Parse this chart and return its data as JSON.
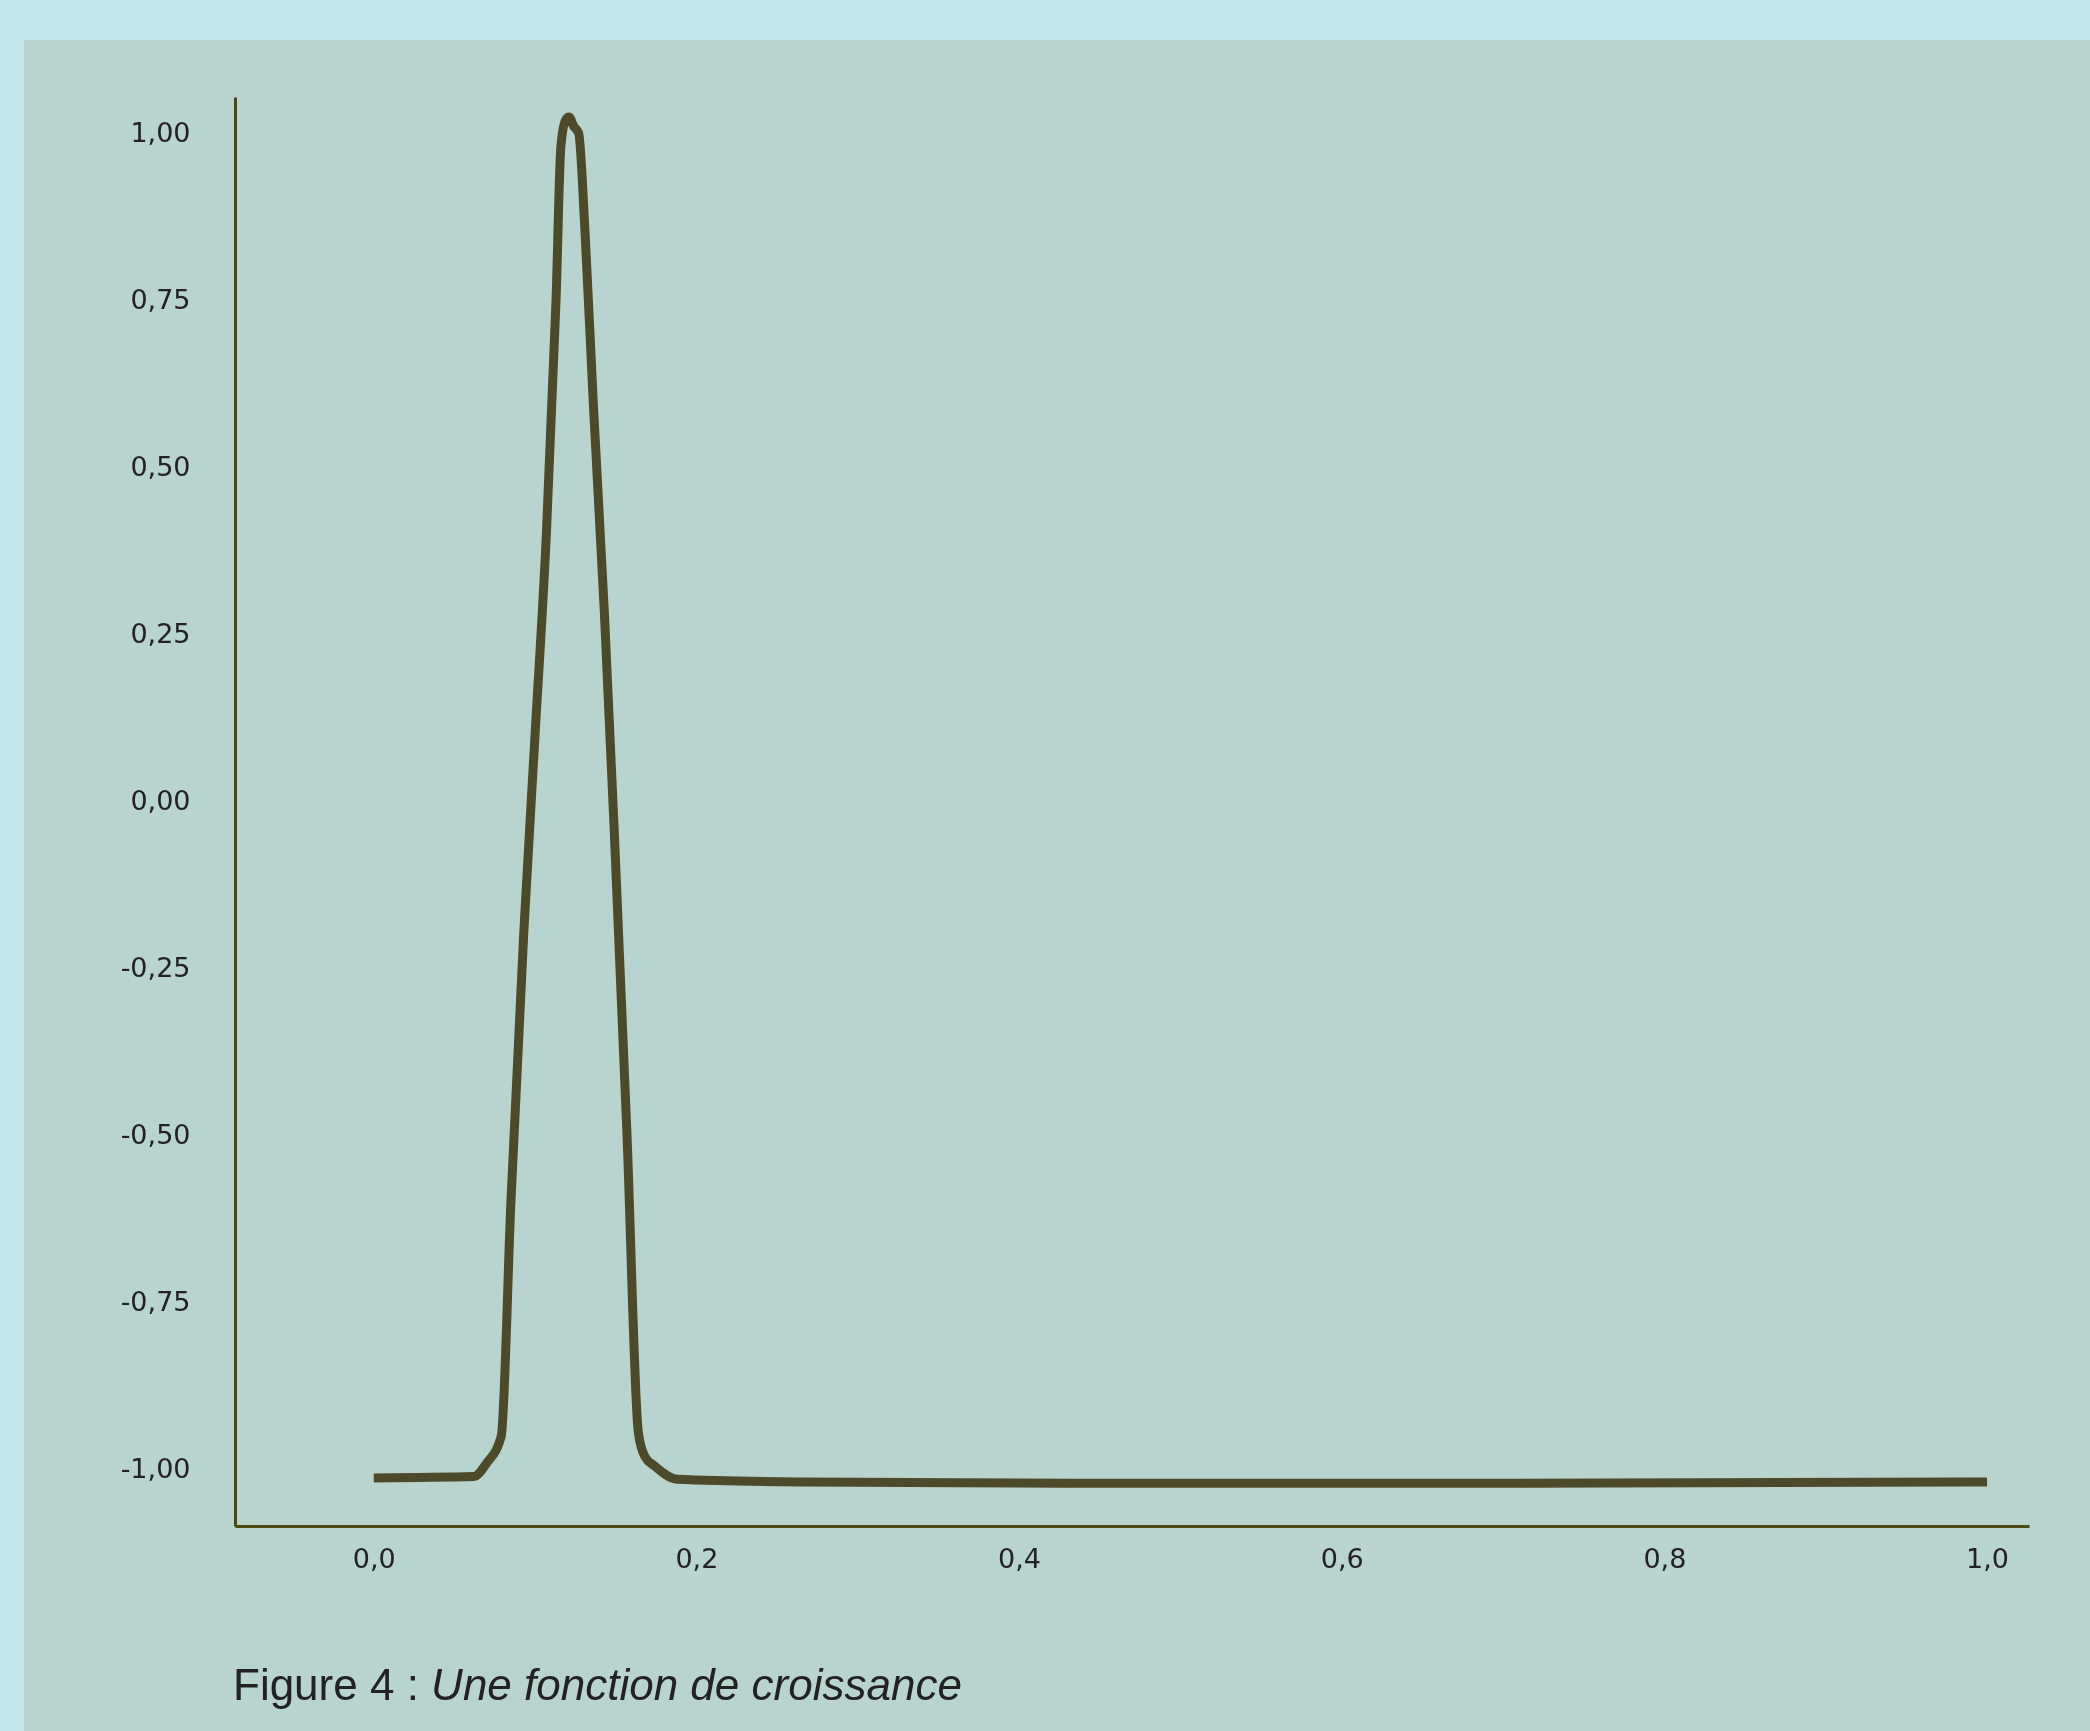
{
  "chart_data": {
    "type": "line",
    "x": [
      0.0,
      0.062,
      0.07,
      0.079,
      0.085,
      0.093,
      0.1,
      0.107,
      0.113,
      0.116,
      0.119,
      0.121,
      0.124,
      0.127,
      0.131,
      0.136,
      0.143,
      0.149,
      0.157,
      0.164,
      0.168,
      0.174,
      0.188,
      0.264,
      0.43,
      0.7,
      1.0
    ],
    "series": [
      {
        "color": "#4d4a2a",
        "values": [
          -1.012,
          -1.01,
          -0.99,
          -0.95,
          -0.6,
          -0.196,
          0.1,
          0.4,
          0.75,
          0.98,
          1.02,
          1.024,
          1.01,
          1.0,
          0.85,
          0.6,
          0.28,
          -0.04,
          -0.5,
          -0.944,
          -0.98,
          -0.994,
          -1.014,
          -1.018,
          -1.02,
          -1.02,
          -1.018
        ]
      }
    ],
    "xlim": [
      -0.086,
      1.026
    ],
    "xticks": [
      {
        "value": 0,
        "label": "0,0"
      },
      {
        "value": 0.2,
        "label": "0,2"
      },
      {
        "value": 0.4,
        "label": "0,4"
      },
      {
        "value": 0.6,
        "label": "0,6"
      },
      {
        "value": 0.8,
        "label": "0,8"
      },
      {
        "value": 1.0,
        "label": "1,0"
      }
    ],
    "ylim": [
      -1.084,
      1.054
    ],
    "yticks": [
      {
        "value": -1,
        "label": "-1,00"
      },
      {
        "value": -0.75,
        "label": "-0,75"
      },
      {
        "value": -0.5,
        "label": "-0,50"
      },
      {
        "value": -0.25,
        "label": "-0,25"
      },
      {
        "value": 0,
        "label": "0,00"
      },
      {
        "value": 0.25,
        "label": "0,25"
      },
      {
        "value": 0.5,
        "label": "0,50"
      },
      {
        "value": 0.75,
        "label": "0,75"
      },
      {
        "value": 1,
        "label": "1,00"
      }
    ],
    "grid": false,
    "marker": "none",
    "line_style": "solid",
    "annotations": [
      "Figure 4 :",
      "Une fonction de croissance"
    ]
  }
}
